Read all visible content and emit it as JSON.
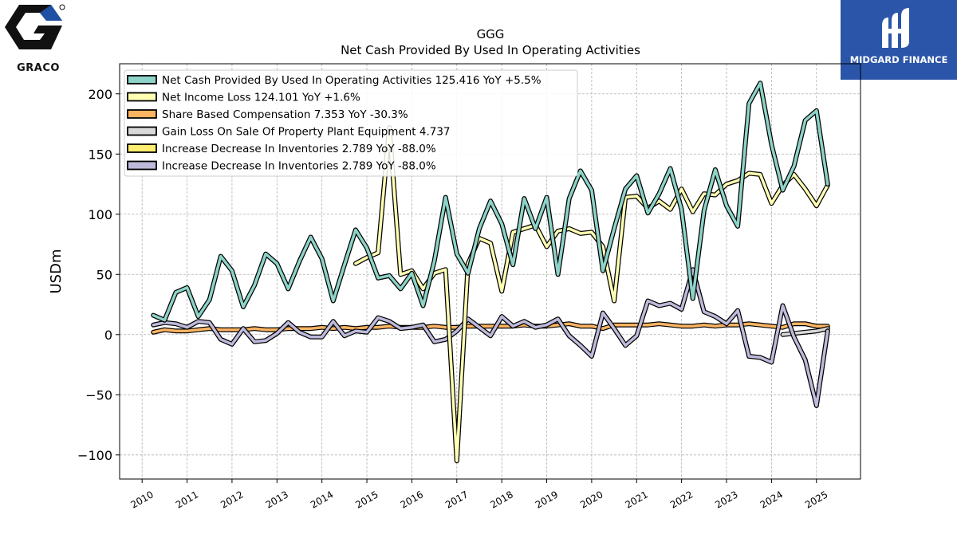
{
  "header": {
    "ticker": "GGG",
    "title": "Net Cash Provided By Used In Operating Activities"
  },
  "brands": {
    "left_logo_text": "GRACO",
    "right_logo_text": "MIDGARD FINANCE"
  },
  "colors": {
    "series": [
      "#8dd3c7",
      "#ffffb3",
      "#fdb462",
      "#d9d9d9",
      "#ffed6f",
      "#bebada"
    ],
    "brand_right_bg": "#2b55a8"
  },
  "chart_data": {
    "type": "line",
    "ylabel": "USDm",
    "ylim": [
      -120,
      225
    ],
    "xlim": [
      2009.5,
      2025.98
    ],
    "yticks": [
      -100,
      -50,
      0,
      50,
      100,
      150,
      200
    ],
    "ytick_labels": [
      "−100",
      "−50",
      "0",
      "50",
      "100",
      "150",
      "200"
    ],
    "xticks": [
      2010,
      2011,
      2012,
      2013,
      2014,
      2015,
      2016,
      2017,
      2018,
      2019,
      2020,
      2021,
      2022,
      2023,
      2024,
      2025
    ],
    "xtick_labels": [
      "2010",
      "2011",
      "2012",
      "2013",
      "2014",
      "2015",
      "2016",
      "2017",
      "2018",
      "2019",
      "2020",
      "2021",
      "2022",
      "2023",
      "2024",
      "2025"
    ],
    "grid": true,
    "legend_position": "top-left",
    "series": [
      {
        "name": "Net Cash Provided By Used In Operating Activities  125.416 YoY +5.5%",
        "color": "#8dd3c7",
        "x": [
          2010.25,
          2010.5,
          2010.75,
          2011.0,
          2011.25,
          2011.5,
          2011.75,
          2012.0,
          2012.25,
          2012.5,
          2012.75,
          2013.0,
          2013.25,
          2013.5,
          2013.75,
          2014.0,
          2014.25,
          2014.5,
          2014.75,
          2015.0,
          2015.25,
          2015.5,
          2015.75,
          2016.0,
          2016.25,
          2016.5,
          2016.75,
          2017.0,
          2017.25,
          2017.5,
          2017.75,
          2018.0,
          2018.25,
          2018.5,
          2018.75,
          2019.0,
          2019.25,
          2019.5,
          2019.75,
          2020.0,
          2020.25,
          2020.5,
          2020.75,
          2021.0,
          2021.25,
          2021.5,
          2021.75,
          2022.0,
          2022.25,
          2022.5,
          2022.75,
          2023.0,
          2023.25,
          2023.5,
          2023.75,
          2024.0,
          2024.25,
          2024.5,
          2024.75,
          2025.0,
          2025.25
        ],
        "y": [
          16,
          12,
          35,
          39,
          15,
          29,
          65,
          53,
          23,
          41,
          67,
          59,
          38,
          61,
          81,
          63,
          28,
          58,
          87,
          72,
          47,
          49,
          38,
          51,
          24,
          61,
          114,
          67,
          51,
          88,
          111,
          92,
          58,
          113,
          88,
          114,
          50,
          113,
          136,
          120,
          53,
          88,
          121,
          132,
          101,
          117,
          138,
          104,
          30,
          103,
          137,
          107,
          90,
          192,
          209,
          158,
          120,
          140,
          178,
          186,
          125
        ]
      },
      {
        "name": "Net Income Loss  124.101 YoY +1.6%",
        "color": "#ffffb3",
        "x": [
          2014.75,
          2015.0,
          2015.25,
          2015.5,
          2015.75,
          2016.0,
          2016.25,
          2016.5,
          2016.75,
          2017.0,
          2017.25,
          2017.5,
          2017.75,
          2018.0,
          2018.25,
          2018.5,
          2018.75,
          2019.0,
          2019.25,
          2019.5,
          2019.75,
          2020.0,
          2020.25,
          2020.5,
          2020.75,
          2021.0,
          2021.25,
          2021.5,
          2021.75,
          2022.0,
          2022.25,
          2022.5,
          2022.75,
          2023.0,
          2023.25,
          2023.5,
          2023.75,
          2024.0,
          2024.25,
          2024.5,
          2024.75,
          2025.0,
          2025.25
        ],
        "y": [
          59,
          64,
          68,
          172,
          50,
          53,
          38,
          51,
          54,
          -105,
          59,
          80,
          76,
          36,
          85,
          88,
          91,
          73,
          86,
          88,
          84,
          85,
          73,
          28,
          114,
          115,
          105,
          111,
          104,
          121,
          102,
          117,
          116,
          125,
          128,
          134,
          133,
          109,
          124,
          133,
          121,
          107,
          124
        ]
      },
      {
        "name": "Share Based Compensation  7.353 YoY -30.3%",
        "color": "#fdb462",
        "x": [
          2010.25,
          2010.5,
          2010.75,
          2011.0,
          2011.25,
          2011.5,
          2011.75,
          2012.0,
          2012.25,
          2012.5,
          2012.75,
          2013.0,
          2013.25,
          2013.5,
          2013.75,
          2014.0,
          2014.25,
          2014.5,
          2014.75,
          2015.0,
          2015.25,
          2015.5,
          2015.75,
          2016.0,
          2016.25,
          2016.5,
          2016.75,
          2017.0,
          2017.25,
          2017.5,
          2017.75,
          2018.0,
          2018.25,
          2018.5,
          2018.75,
          2019.0,
          2019.25,
          2019.5,
          2019.75,
          2020.0,
          2020.25,
          2020.5,
          2020.75,
          2021.0,
          2021.25,
          2021.5,
          2021.75,
          2022.0,
          2022.25,
          2022.5,
          2022.75,
          2023.0,
          2023.25,
          2023.5,
          2023.75,
          2024.0,
          2024.25,
          2024.5,
          2024.75,
          2025.0,
          2025.25
        ],
        "y": [
          2,
          4,
          3,
          3,
          4,
          5,
          4,
          4,
          4,
          5,
          4,
          4,
          5,
          5,
          5,
          6,
          5,
          6,
          5,
          6,
          6,
          7,
          6,
          6,
          6,
          7,
          6,
          6,
          7,
          7,
          7,
          7,
          7,
          8,
          7,
          7,
          8,
          9,
          7,
          7,
          5,
          8,
          8,
          8,
          8,
          9,
          8,
          7,
          7,
          8,
          7,
          8,
          8,
          9,
          8,
          7,
          6,
          9,
          9,
          7,
          7
        ]
      },
      {
        "name": "Gain Loss On Sale Of Property Plant Equipment  4.737",
        "color": "#d9d9d9",
        "x": [
          2024.25,
          2024.5,
          2024.75,
          2025.0,
          2025.25
        ],
        "y": [
          0,
          1,
          2,
          3,
          5
        ]
      },
      {
        "name": "Increase Decrease In Inventories  2.789 YoY -88.0%",
        "color": "#ffed6f",
        "x": [
          2025.25
        ],
        "y": [
          3
        ]
      },
      {
        "name": "Increase Decrease In Inventories  2.789 YoY -88.0%",
        "color": "#bebada",
        "x": [
          2010.25,
          2010.5,
          2010.75,
          2011.0,
          2011.25,
          2011.5,
          2011.75,
          2012.0,
          2012.25,
          2012.5,
          2012.75,
          2013.0,
          2013.25,
          2013.5,
          2013.75,
          2014.0,
          2014.25,
          2014.5,
          2014.75,
          2015.0,
          2015.25,
          2015.5,
          2015.75,
          2016.0,
          2016.25,
          2016.5,
          2016.75,
          2017.0,
          2017.25,
          2017.5,
          2017.75,
          2018.0,
          2018.25,
          2018.5,
          2018.75,
          2019.0,
          2019.25,
          2019.5,
          2019.75,
          2020.0,
          2020.25,
          2020.5,
          2020.75,
          2021.0,
          2021.25,
          2021.5,
          2021.75,
          2022.0,
          2022.25,
          2022.5,
          2022.75,
          2023.0,
          2023.25,
          2023.5,
          2023.75,
          2024.0,
          2024.25,
          2024.5,
          2024.75,
          2025.0,
          2025.25
        ],
        "y": [
          8,
          10,
          9,
          6,
          11,
          10,
          -4,
          -8,
          5,
          -6,
          -5,
          1,
          10,
          2,
          -2,
          -2,
          11,
          -1,
          3,
          2,
          14,
          11,
          5,
          6,
          8,
          -6,
          -4,
          3,
          13,
          6,
          -1,
          15,
          7,
          11,
          6,
          8,
          13,
          -1,
          -9,
          -18,
          18,
          5,
          -9,
          -1,
          28,
          24,
          26,
          21,
          54,
          19,
          15,
          9,
          20,
          -18,
          -19,
          -23,
          24,
          -2,
          -21,
          -59,
          3
        ]
      }
    ]
  }
}
